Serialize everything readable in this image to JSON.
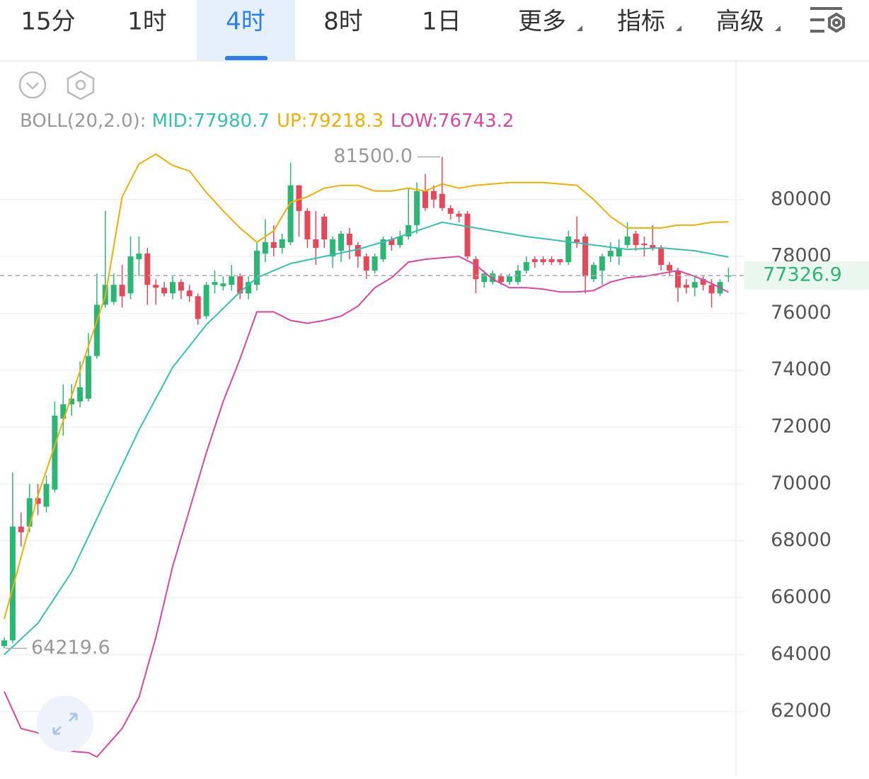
{
  "tabs": {
    "items": [
      "15分",
      "1时",
      "4时",
      "8时",
      "1日",
      "更多",
      "指标",
      "高级"
    ],
    "active": 2
  },
  "chart_data": {
    "type": "candlestick",
    "indicator": {
      "name": "BOLL(20,2.0):",
      "items": [
        {
          "label": "MID:",
          "value": 77980.7,
          "color": "#35c2ad"
        },
        {
          "label": "UP:",
          "value": 79218.3,
          "color": "#eeb000"
        },
        {
          "label": "LOW:",
          "value": 76743.2,
          "color": "#d9479e"
        }
      ]
    },
    "ylim": [
      59725,
      84875
    ],
    "yticks": [
      62000,
      64000,
      66000,
      68000,
      70000,
      72000,
      74000,
      76000,
      78000,
      80000
    ],
    "grid": true,
    "up_color": "#2bb673",
    "down_color": "#e5475b",
    "last_price": 77326.9,
    "high_mark": {
      "value": 81500,
      "label": "81500.0"
    },
    "low_mark": {
      "value": 64219.6,
      "label": "64219.6"
    },
    "candles": [
      [
        64300,
        64600,
        64219.6,
        64500
      ],
      [
        64500,
        70400,
        64400,
        68500
      ],
      [
        68500,
        69000,
        67800,
        68300
      ],
      [
        68500,
        70000,
        68300,
        69500
      ],
      [
        69500,
        70000,
        68900,
        69300
      ],
      [
        69200,
        70300,
        69000,
        70000
      ],
      [
        69800,
        72900,
        69700,
        72400
      ],
      [
        72300,
        73500,
        71700,
        72800
      ],
      [
        72800,
        73500,
        72400,
        73000
      ],
      [
        72900,
        74300,
        72700,
        73400
      ],
      [
        73000,
        75300,
        72900,
        74500
      ],
      [
        74500,
        77400,
        74400,
        76300
      ],
      [
        76300,
        79600,
        76200,
        77000
      ],
      [
        76400,
        77400,
        76300,
        77000
      ],
      [
        77000,
        77700,
        76200,
        76600
      ],
      [
        76700,
        78700,
        76500,
        78000
      ],
      [
        77900,
        78700,
        77300,
        78100
      ],
      [
        78100,
        78300,
        76300,
        77000
      ],
      [
        77000,
        77200,
        76300,
        76900
      ],
      [
        76900,
        77100,
        76600,
        76700
      ],
      [
        76700,
        77300,
        76500,
        77100
      ],
      [
        77100,
        77200,
        76500,
        76800
      ],
      [
        76800,
        77000,
        76400,
        76600
      ],
      [
        76600,
        76700,
        75600,
        75800
      ],
      [
        75900,
        77100,
        75800,
        77000
      ],
      [
        77000,
        77500,
        76700,
        77100
      ],
      [
        76950,
        77300,
        76800,
        77050
      ],
      [
        77000,
        77700,
        76800,
        77300
      ],
      [
        77300,
        77400,
        76500,
        76700
      ],
      [
        76700,
        77300,
        76500,
        77100
      ],
      [
        77000,
        78500,
        76800,
        78200
      ],
      [
        78100,
        79300,
        77800,
        78500
      ],
      [
        78500,
        79100,
        78000,
        78300
      ],
      [
        78300,
        78800,
        78100,
        78600
      ],
      [
        78500,
        81300,
        78400,
        80500
      ],
      [
        80500,
        80500,
        78700,
        79600
      ],
      [
        79600,
        79700,
        78300,
        78600
      ],
      [
        78600,
        79600,
        77700,
        78300
      ],
      [
        79400,
        79500,
        78300,
        78600
      ],
      [
        78000,
        78700,
        77600,
        78600
      ],
      [
        78200,
        78900,
        77800,
        78800
      ],
      [
        78800,
        79000,
        77900,
        78400
      ],
      [
        78400,
        78500,
        77600,
        78000
      ],
      [
        78000,
        78100,
        77200,
        77500
      ],
      [
        77500,
        78100,
        77400,
        78000
      ],
      [
        77900,
        78700,
        77800,
        78600
      ],
      [
        78600,
        78700,
        78200,
        78400
      ],
      [
        78400,
        78900,
        78300,
        78700
      ],
      [
        78700,
        80400,
        78600,
        79100
      ],
      [
        79100,
        80600,
        78800,
        80300
      ],
      [
        80300,
        80900,
        79600,
        79700
      ],
      [
        80300,
        80500,
        79700,
        80000
      ],
      [
        80200,
        81500,
        79600,
        79700
      ],
      [
        79700,
        79800,
        79300,
        79500
      ],
      [
        79500,
        79600,
        79200,
        79400
      ],
      [
        79500,
        79600,
        77900,
        78000
      ],
      [
        77900,
        78000,
        76700,
        77200
      ],
      [
        77100,
        77500,
        76900,
        77400
      ],
      [
        77100,
        77500,
        77000,
        77400
      ],
      [
        77300,
        77400,
        77000,
        77100
      ],
      [
        77100,
        77400,
        77000,
        77300
      ],
      [
        77100,
        77700,
        77000,
        77500
      ],
      [
        77500,
        78000,
        77400,
        77800
      ],
      [
        77900,
        78000,
        77600,
        77800
      ],
      [
        77900,
        78000,
        77700,
        77800
      ],
      [
        77900,
        78000,
        77700,
        77800
      ],
      [
        77900,
        77900,
        77700,
        77800
      ],
      [
        77800,
        78900,
        77700,
        78700
      ],
      [
        78600,
        79400,
        78300,
        78500
      ],
      [
        78700,
        78800,
        76700,
        77300
      ],
      [
        77200,
        77800,
        77100,
        77700
      ],
      [
        77500,
        78100,
        77000,
        78000
      ],
      [
        78000,
        78500,
        77800,
        78200
      ],
      [
        78000,
        78600,
        77700,
        78300
      ],
      [
        78400,
        79200,
        78300,
        78700
      ],
      [
        78800,
        78900,
        78200,
        78400
      ],
      [
        78450,
        78700,
        78000,
        78400
      ],
      [
        78400,
        79100,
        78200,
        78300
      ],
      [
        78300,
        78400,
        77500,
        77700
      ],
      [
        77700,
        77800,
        77300,
        77500
      ],
      [
        77500,
        77600,
        76400,
        76900
      ],
      [
        77000,
        77200,
        76700,
        76900
      ],
      [
        76900,
        77300,
        76600,
        77100
      ],
      [
        77200,
        77300,
        76800,
        77000
      ],
      [
        77000,
        77200,
        76200,
        76700
      ],
      [
        76700,
        77200,
        76600,
        77100
      ],
      [
        77300,
        77600,
        77100,
        77326.9
      ]
    ],
    "bands": [
      {
        "name": "UP",
        "color": "#eeb000",
        "x": [
          0,
          4,
          8,
          12,
          14,
          16,
          18,
          20,
          22,
          24,
          26,
          28,
          30,
          32,
          34,
          36,
          38,
          40,
          42,
          44,
          46,
          48,
          50,
          52,
          54,
          56,
          60,
          64,
          68,
          70,
          72,
          74,
          76,
          78,
          80,
          82,
          84,
          86
        ],
        "values": [
          65250,
          69600,
          73100,
          76600,
          80100,
          81250,
          81600,
          81200,
          81000,
          80250,
          79600,
          79000,
          78500,
          78900,
          79900,
          80100,
          80400,
          80500,
          80500,
          80300,
          80300,
          80400,
          80300,
          80550,
          80400,
          80500,
          80600,
          80600,
          80500,
          80000,
          79400,
          79000,
          79000,
          79000,
          79100,
          79100,
          79200,
          79218.3
        ]
      },
      {
        "name": "MID",
        "color": "#35c2ad",
        "x": [
          0,
          4,
          8,
          12,
          16,
          20,
          24,
          28,
          30,
          34,
          38,
          42,
          46,
          50,
          52,
          54,
          58,
          62,
          66,
          70,
          74,
          78,
          82,
          86
        ],
        "values": [
          64000,
          65100,
          66900,
          69400,
          71900,
          74100,
          75600,
          76750,
          77250,
          77750,
          78000,
          78250,
          78600,
          79000,
          79200,
          79100,
          78900,
          78700,
          78550,
          78400,
          78250,
          78300,
          78200,
          77980.7
        ]
      },
      {
        "name": "LOW",
        "color": "#d9479e",
        "x": [
          0,
          2,
          4,
          6,
          8,
          10,
          11,
          14,
          16,
          18,
          20,
          22,
          24,
          26,
          28,
          30,
          32,
          34,
          36,
          38,
          40,
          42,
          44,
          46,
          48,
          50,
          52,
          54,
          56,
          58,
          60,
          62,
          64,
          66,
          68,
          70,
          72,
          74,
          76,
          78,
          80,
          82,
          84,
          86
        ],
        "values": [
          62700,
          61400,
          61250,
          60800,
          60600,
          60550,
          60400,
          61400,
          62500,
          64600,
          67100,
          69100,
          71100,
          72900,
          74400,
          76050,
          76050,
          75750,
          75650,
          75750,
          75900,
          76250,
          76900,
          77250,
          77800,
          77900,
          77950,
          78000,
          77700,
          77200,
          76900,
          76900,
          76850,
          76750,
          76750,
          76800,
          77100,
          77250,
          77300,
          77400,
          77500,
          77300,
          77050,
          76743.2
        ]
      }
    ]
  }
}
